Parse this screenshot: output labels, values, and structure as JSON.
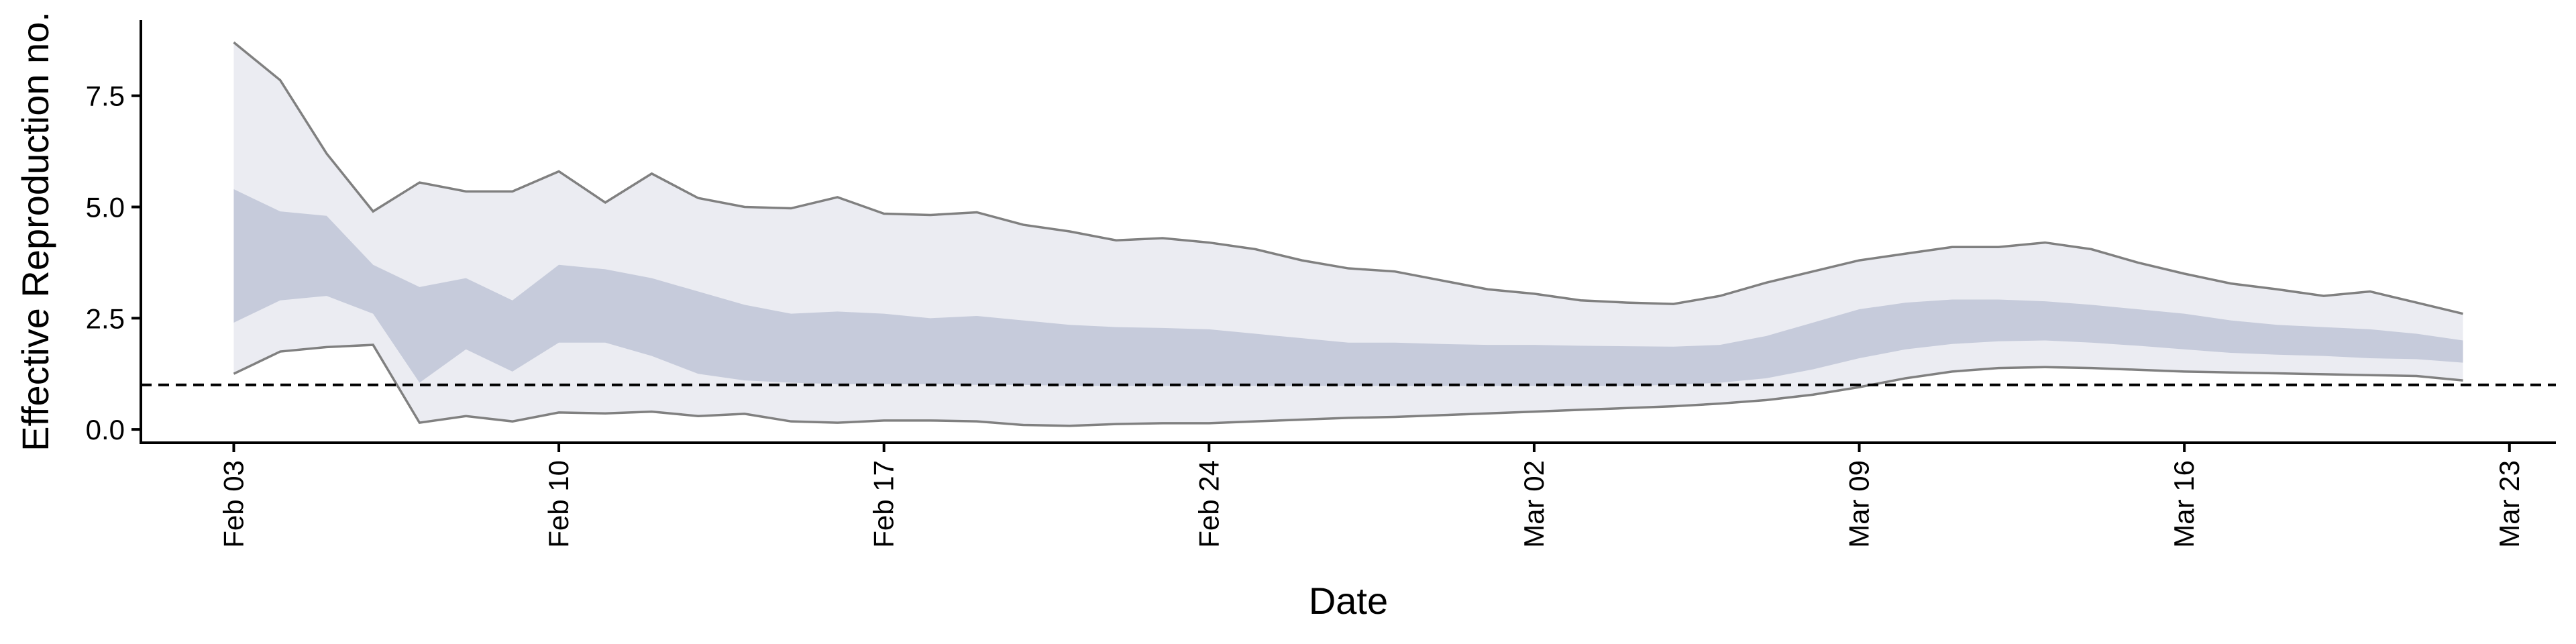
{
  "chart_data": {
    "type": "area",
    "title": "",
    "xlabel": "Date",
    "ylabel": "Effective Reproduction no.",
    "x_axis": {
      "type": "date",
      "range": [
        "2020-02-01",
        "2020-03-24"
      ],
      "ticks": [
        "2020-02-03",
        "2020-02-10",
        "2020-02-17",
        "2020-02-24",
        "2020-03-02",
        "2020-03-09",
        "2020-03-16",
        "2020-03-23"
      ],
      "tick_labels": [
        "Feb 03",
        "Feb 10",
        "Feb 17",
        "Feb 24",
        "Mar 02",
        "Mar 09",
        "Mar 16",
        "Mar 23"
      ]
    },
    "y_axis": {
      "range": [
        -0.3,
        9.2
      ],
      "ticks": [
        0,
        2.5,
        5,
        7.5
      ],
      "tick_labels": [
        "0.0",
        "2.5",
        "5.0",
        "7.5"
      ]
    },
    "grid": false,
    "legend": "none",
    "reference_line": {
      "y": 1,
      "style": "dashed"
    },
    "colors": {
      "outer_band": "#ebecf2",
      "inner_band": "#c6cbdb",
      "outer_line": "#808080",
      "reference": "#000000",
      "axis": "#000000"
    },
    "dates": [
      "2020-02-03",
      "2020-02-04",
      "2020-02-05",
      "2020-02-06",
      "2020-02-07",
      "2020-02-08",
      "2020-02-09",
      "2020-02-10",
      "2020-02-11",
      "2020-02-12",
      "2020-02-13",
      "2020-02-14",
      "2020-02-15",
      "2020-02-16",
      "2020-02-17",
      "2020-02-18",
      "2020-02-19",
      "2020-02-20",
      "2020-02-21",
      "2020-02-22",
      "2020-02-23",
      "2020-02-24",
      "2020-02-25",
      "2020-02-26",
      "2020-02-27",
      "2020-02-28",
      "2020-02-29",
      "2020-03-01",
      "2020-03-02",
      "2020-03-03",
      "2020-03-04",
      "2020-03-05",
      "2020-03-06",
      "2020-03-07",
      "2020-03-08",
      "2020-03-09",
      "2020-03-10",
      "2020-03-11",
      "2020-03-12",
      "2020-03-13",
      "2020-03-14",
      "2020-03-15",
      "2020-03-16",
      "2020-03-17",
      "2020-03-18",
      "2020-03-19",
      "2020-03-20",
      "2020-03-21",
      "2020-03-22"
    ],
    "series": [
      {
        "name": "",
        "role": "outer_upper",
        "values": [
          8.7,
          7.85,
          6.2,
          4.9,
          5.55,
          5.35,
          5.35,
          5.8,
          5.1,
          5.75,
          5.2,
          5.0,
          4.97,
          5.22,
          4.85,
          4.82,
          4.88,
          4.6,
          4.45,
          4.25,
          4.3,
          4.2,
          4.05,
          3.8,
          3.62,
          3.55,
          3.35,
          3.15,
          3.05,
          2.9,
          2.85,
          2.82,
          3.0,
          3.3,
          3.55,
          3.8,
          3.95,
          4.1,
          4.1,
          4.2,
          4.05,
          3.75,
          3.5,
          3.28,
          3.15,
          3.0,
          3.1,
          2.85,
          2.6
        ]
      },
      {
        "name": "",
        "role": "inner_upper",
        "values": [
          5.4,
          4.9,
          4.8,
          3.7,
          3.2,
          3.4,
          2.9,
          3.7,
          3.6,
          3.4,
          3.1,
          2.8,
          2.6,
          2.65,
          2.6,
          2.5,
          2.55,
          2.45,
          2.35,
          2.3,
          2.28,
          2.25,
          2.15,
          2.05,
          1.95,
          1.95,
          1.92,
          1.9,
          1.9,
          1.88,
          1.87,
          1.86,
          1.9,
          2.1,
          2.4,
          2.7,
          2.85,
          2.92,
          2.92,
          2.88,
          2.8,
          2.7,
          2.6,
          2.45,
          2.35,
          2.3,
          2.25,
          2.15,
          2.0
        ]
      },
      {
        "name": "",
        "role": "inner_lower",
        "values": [
          2.4,
          2.9,
          3.0,
          2.6,
          1.05,
          1.8,
          1.3,
          1.95,
          1.95,
          1.65,
          1.25,
          1.1,
          1.05,
          1.02,
          1.02,
          1.02,
          1.0,
          1.0,
          0.98,
          0.98,
          0.98,
          0.98,
          0.98,
          0.98,
          0.98,
          0.98,
          0.98,
          0.98,
          0.98,
          0.98,
          0.98,
          1.0,
          1.05,
          1.15,
          1.35,
          1.6,
          1.8,
          1.92,
          1.98,
          2.0,
          1.95,
          1.88,
          1.8,
          1.72,
          1.68,
          1.65,
          1.6,
          1.58,
          1.5
        ]
      },
      {
        "name": "",
        "role": "outer_lower",
        "values": [
          1.25,
          1.75,
          1.85,
          1.9,
          0.15,
          0.3,
          0.18,
          0.38,
          0.36,
          0.4,
          0.3,
          0.35,
          0.18,
          0.15,
          0.2,
          0.2,
          0.18,
          0.1,
          0.08,
          0.12,
          0.14,
          0.14,
          0.18,
          0.22,
          0.26,
          0.28,
          0.32,
          0.36,
          0.4,
          0.44,
          0.48,
          0.52,
          0.58,
          0.66,
          0.78,
          0.95,
          1.15,
          1.3,
          1.38,
          1.4,
          1.38,
          1.34,
          1.3,
          1.28,
          1.26,
          1.24,
          1.22,
          1.2,
          1.1
        ]
      }
    ]
  }
}
